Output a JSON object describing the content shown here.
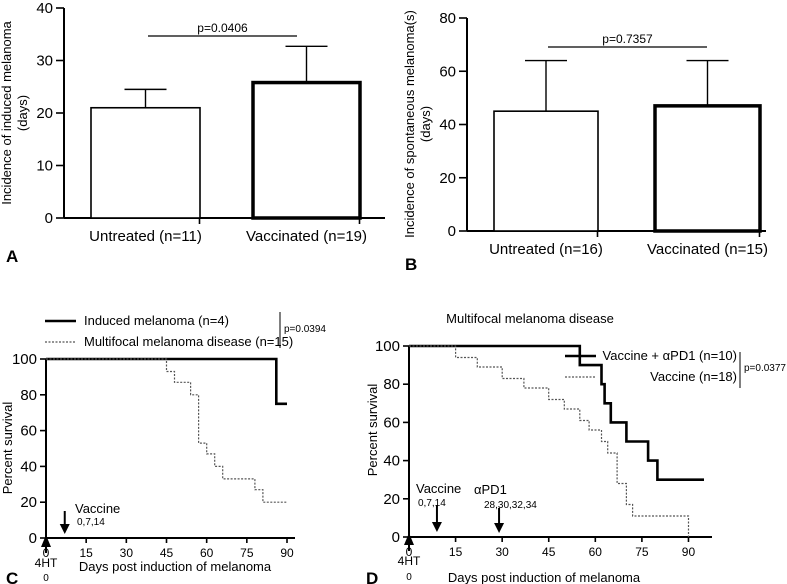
{
  "chart_data": [
    {
      "panel": "A",
      "type": "bar",
      "categories": [
        "Untreated (n=11)",
        "Vaccinated (n=19)"
      ],
      "values": [
        21,
        25.8
      ],
      "error_upper": [
        24.5,
        32.7
      ],
      "bar_edge_width": [
        "thin",
        "thick"
      ],
      "ylabel": "Incidence of induced melanoma (days)",
      "ylabel_lines": [
        "Incidence of induced melanoma",
        "(days)"
      ],
      "ylim": [
        0,
        40
      ],
      "yticks": [
        "0",
        "10",
        "20",
        "30",
        "40"
      ],
      "pvalue": "p=0.0406"
    },
    {
      "panel": "B",
      "type": "bar",
      "categories": [
        "Untreated (n=16)",
        "Vaccinated (n=15)"
      ],
      "values": [
        45,
        47
      ],
      "error_upper": [
        64,
        64
      ],
      "bar_edge_width": [
        "thin",
        "thick"
      ],
      "ylabel": "Incidence of spontaneous melanoma(s) (days)",
      "ylabel_lines": [
        "Incidence of spontaneous melanoma(s)",
        "(days)"
      ],
      "ylim": [
        0,
        80
      ],
      "yticks": [
        "0",
        "20",
        "40",
        "60",
        "80"
      ],
      "pvalue": "p=0.7357"
    },
    {
      "panel": "C",
      "type": "line",
      "subtype": "kaplan-meier",
      "xlabel": "Days post induction of melanoma",
      "ylabel": "Percent survival",
      "xlim": [
        0,
        90
      ],
      "ylim": [
        0,
        100
      ],
      "xticks": [
        "0",
        "15",
        "30",
        "45",
        "60",
        "75",
        "90"
      ],
      "yticks": [
        "0",
        "20",
        "40",
        "60",
        "80",
        "100"
      ],
      "pvalue": "p=0.0394",
      "annotations": [
        {
          "label": "4HT",
          "sublabel": "0",
          "day": 0,
          "direction": "up"
        },
        {
          "label": "Vaccine",
          "sublabel": "0,7,14",
          "day": 7,
          "direction": "down"
        }
      ],
      "series": [
        {
          "name": "Induced melanoma (n=4)",
          "style": "solid-thick",
          "x": [
            0,
            86,
            86,
            90
          ],
          "y": [
            100,
            100,
            75,
            75
          ]
        },
        {
          "name": "Multifocal melanoma disease (n=15)",
          "style": "dotted",
          "x": [
            0,
            45,
            45,
            48,
            48,
            54,
            54,
            57,
            57,
            60,
            60,
            63,
            63,
            66,
            66,
            72,
            72,
            78,
            78,
            81,
            81,
            84,
            84,
            87,
            87,
            90
          ],
          "y": [
            100,
            100,
            93,
            93,
            87,
            87,
            80,
            80,
            53,
            53,
            47,
            47,
            40,
            40,
            33,
            33,
            33,
            33,
            27,
            27,
            20,
            20,
            20,
            20,
            20,
            20
          ]
        }
      ]
    },
    {
      "panel": "D",
      "type": "line",
      "subtype": "kaplan-meier",
      "title": "Multifocal melanoma disease",
      "xlabel": "Days post induction of melanoma",
      "ylabel": "Percent survival",
      "xlim": [
        0,
        95
      ],
      "ylim": [
        0,
        100
      ],
      "xticks": [
        "0",
        "15",
        "30",
        "45",
        "60",
        "75",
        "90"
      ],
      "yticks": [
        "0",
        "20",
        "40",
        "60",
        "80",
        "100"
      ],
      "pvalue": "p=0.0377",
      "annotations": [
        {
          "label": "4HT",
          "sublabel": "0",
          "day": 0,
          "direction": "up"
        },
        {
          "label": "Vaccine",
          "sublabel": "0,7,14",
          "day": 9,
          "direction": "down"
        },
        {
          "label": "αPD1",
          "sublabel": "28,30,32,34",
          "day": 29,
          "direction": "down"
        }
      ],
      "series": [
        {
          "name": "Vaccine + αPD1 (n=10)",
          "style": "solid-thick",
          "x": [
            0,
            55,
            55,
            62,
            62,
            63,
            63,
            65,
            65,
            70,
            70,
            77,
            77,
            80,
            80,
            95
          ],
          "y": [
            100,
            100,
            90,
            90,
            80,
            80,
            70,
            70,
            60,
            60,
            50,
            50,
            40,
            40,
            30,
            30
          ]
        },
        {
          "name": "Vaccine (n=18)",
          "style": "dotted",
          "x": [
            0,
            15,
            15,
            22,
            22,
            30,
            30,
            37,
            37,
            45,
            45,
            50,
            50,
            55,
            55,
            58,
            58,
            62,
            62,
            64,
            64,
            67,
            67,
            70,
            70,
            72,
            72,
            90,
            90
          ],
          "y": [
            100,
            100,
            94,
            94,
            89,
            89,
            83,
            83,
            78,
            78,
            72,
            72,
            67,
            67,
            61,
            61,
            56,
            56,
            50,
            50,
            44,
            44,
            28,
            28,
            17,
            17,
            11,
            11,
            0
          ]
        }
      ]
    }
  ]
}
